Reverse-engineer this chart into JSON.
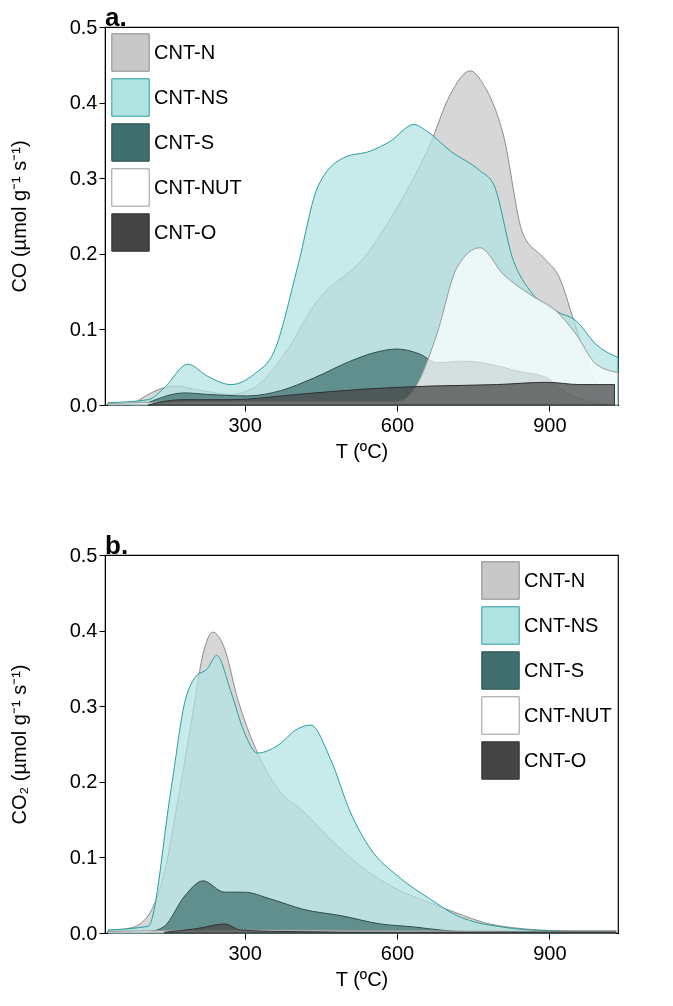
{
  "chart_data": [
    {
      "type": "area",
      "title": "a.",
      "xlabel": "T (ºC)",
      "ylabel": "CO (µmol g⁻¹ s⁻¹)",
      "xlim": [
        25,
        1035
      ],
      "ylim": [
        0,
        0.5
      ],
      "xticks": [
        300,
        600,
        900
      ],
      "yticks": [
        {
          "value": 0,
          "label": "0.0"
        },
        0.1,
        0.2,
        0.3,
        0.4,
        0.5
      ],
      "legend": "top left",
      "series": [
        {
          "name": "CNT-N",
          "color": "#c8c8c8",
          "x": [
            77,
            162,
            208,
            273,
            319,
            378,
            443,
            535,
            600,
            665,
            705,
            744,
            770,
            809,
            848,
            888,
            920,
            946,
            979,
            1012,
            1035
          ],
          "values": [
            0,
            0.025,
            0.02,
            0.014,
            0.023,
            0.067,
            0.138,
            0.195,
            0.261,
            0.345,
            0.411,
            0.442,
            0.424,
            0.358,
            0.226,
            0.195,
            0.168,
            0.116,
            0.049,
            0.01,
            0
          ]
        },
        {
          "name": "CNT-NS",
          "color": "#b2e3e3",
          "x": [
            31,
            110,
            142,
            188,
            227,
            273,
            319,
            358,
            404,
            443,
            495,
            548,
            587,
            633,
            659,
            705,
            763,
            790,
            829,
            862,
            914,
            953,
            992,
            1035
          ],
          "values": [
            0.003,
            0.007,
            0.023,
            0.054,
            0.038,
            0.027,
            0.041,
            0.071,
            0.182,
            0.287,
            0.327,
            0.336,
            0.349,
            0.371,
            0.362,
            0.336,
            0.31,
            0.292,
            0.191,
            0.151,
            0.124,
            0.111,
            0.08,
            0.063
          ]
        },
        {
          "name": "CNT-S",
          "color": "#3f6f6e",
          "x": [
            110,
            182,
            227,
            306,
            371,
            437,
            508,
            554,
            600,
            646,
            678,
            731,
            783,
            836,
            895,
            927,
            979,
            1012
          ],
          "values": [
            0.003,
            0.016,
            0.014,
            0.012,
            0.019,
            0.036,
            0.058,
            0.069,
            0.074,
            0.067,
            0.056,
            0.058,
            0.054,
            0.045,
            0.036,
            0.019,
            0.005,
            0
          ]
        },
        {
          "name": "CNT-NUT",
          "color": "#ffffff",
          "x": [
            31,
            300,
            600,
            639,
            678,
            718,
            763,
            809,
            862,
            914,
            953,
            992,
            1035
          ],
          "values": [
            0.002,
            0.005,
            0.005,
            0.027,
            0.093,
            0.182,
            0.208,
            0.173,
            0.146,
            0.124,
            0.093,
            0.054,
            0.043
          ]
        },
        {
          "name": "CNT-O",
          "color": "#444444",
          "x": [
            110,
            175,
            273,
            404,
            535,
            665,
            796,
            895,
            960,
            1028
          ],
          "values": [
            0,
            0.007,
            0.007,
            0.014,
            0.021,
            0.025,
            0.027,
            0.03,
            0.027,
            0.027
          ]
        }
      ]
    },
    {
      "type": "area",
      "title": "b.",
      "xlabel": "T (ºC)",
      "ylabel": "CO₂ (µmol g⁻¹ s⁻¹)",
      "xlim": [
        25,
        1035
      ],
      "ylim": [
        0,
        0.5
      ],
      "xticks": [
        300,
        600,
        900
      ],
      "yticks": [
        {
          "value": 0,
          "label": "0.0"
        },
        0.1,
        0.2,
        0.3,
        0.4,
        0.5
      ],
      "legend": "top right",
      "series": [
        {
          "name": "CNT-N",
          "color": "#c8c8c8",
          "x": [
            31,
            77,
            110,
            142,
            169,
            195,
            221,
            237,
            260,
            286,
            319,
            365,
            417,
            469,
            535,
            600,
            665,
            731,
            770,
            829,
            927,
            1031
          ],
          "values": [
            0.003,
            0.007,
            0.023,
            0.08,
            0.177,
            0.279,
            0.377,
            0.398,
            0.377,
            0.31,
            0.248,
            0.191,
            0.16,
            0.124,
            0.085,
            0.058,
            0.04,
            0.023,
            0.014,
            0.007,
            0.003,
            0.003
          ]
        },
        {
          "name": "CNT-NS",
          "color": "#b2e3e3",
          "x": [
            31,
            110,
            155,
            182,
            201,
            227,
            245,
            273,
            299,
            325,
            365,
            404,
            430,
            469,
            508,
            548,
            600,
            665,
            718,
            751,
            796,
            862,
            1031
          ],
          "values": [
            0.004,
            0.009,
            0.19,
            0.305,
            0.337,
            0.35,
            0.367,
            0.319,
            0.266,
            0.238,
            0.248,
            0.27,
            0.275,
            0.23,
            0.16,
            0.111,
            0.076,
            0.045,
            0.023,
            0.015,
            0.009,
            0.004,
            0.001
          ]
        },
        {
          "name": "CNT-S",
          "color": "#3f6f6e",
          "x": [
            110,
            142,
            182,
            218,
            260,
            299,
            351,
            417,
            489,
            567,
            633,
            698,
            764
          ],
          "values": [
            0.001,
            0.009,
            0.049,
            0.069,
            0.054,
            0.054,
            0.045,
            0.031,
            0.023,
            0.012,
            0.008,
            0.003,
            0
          ]
        },
        {
          "name": "CNT-NUT",
          "color": "#ffffff",
          "x": [
            31,
            300,
            600,
            900,
            1031
          ],
          "values": [
            0.002,
            0.004,
            0.003,
            0.002,
            0.002
          ]
        },
        {
          "name": "CNT-O",
          "color": "#444444",
          "x": [
            142,
            208,
            260,
            292,
            371,
            600,
            1031
          ],
          "values": [
            0.001,
            0.006,
            0.012,
            0.004,
            0.002,
            0.001,
            0.001
          ]
        }
      ]
    }
  ]
}
